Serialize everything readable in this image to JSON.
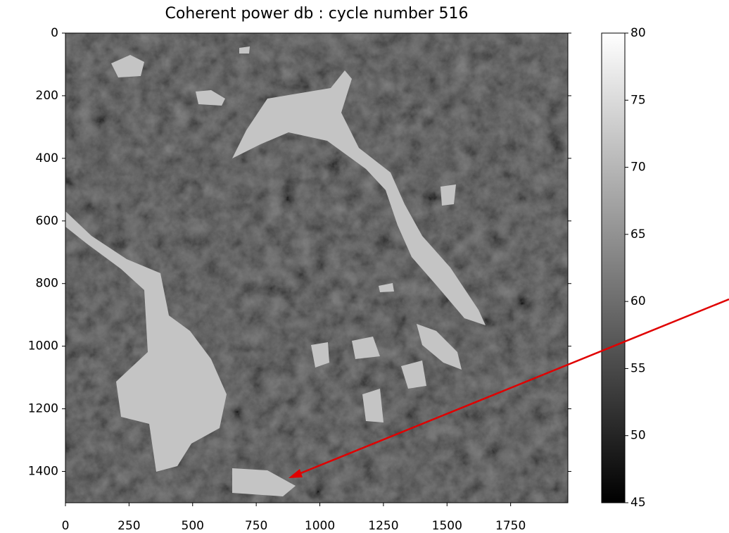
{
  "chart_data": {
    "type": "image",
    "title": "Coherent power db : cycle number 516",
    "xlim": [
      0,
      1975
    ],
    "xticks": [
      0,
      250,
      500,
      750,
      1000,
      1250,
      1500,
      1750
    ],
    "ylim": [
      0,
      1500
    ],
    "y_inverted": true,
    "yticks": [
      0,
      200,
      400,
      600,
      800,
      1000,
      1200,
      1400
    ],
    "colormap": "gray",
    "clim": [
      45,
      80
    ],
    "cticks": [
      45,
      50,
      55,
      60,
      65,
      70,
      75,
      80
    ]
  }
}
